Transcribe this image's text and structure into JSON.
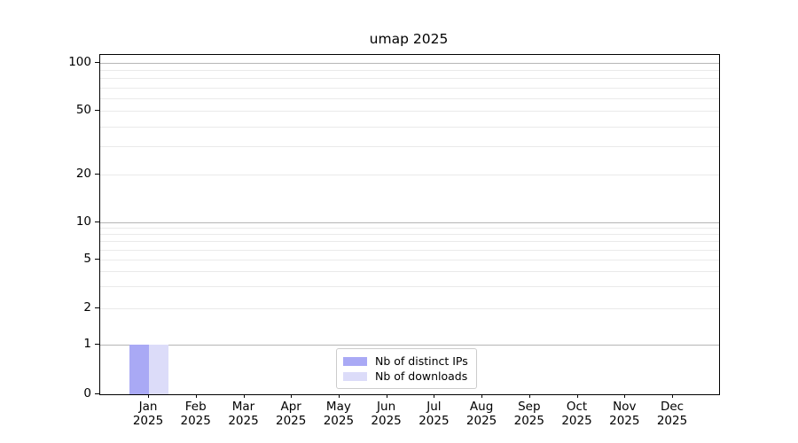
{
  "chart_data": {
    "type": "bar",
    "title": "umap 2025",
    "categories": [
      {
        "month": "Jan",
        "year": "2025"
      },
      {
        "month": "Feb",
        "year": "2025"
      },
      {
        "month": "Mar",
        "year": "2025"
      },
      {
        "month": "Apr",
        "year": "2025"
      },
      {
        "month": "May",
        "year": "2025"
      },
      {
        "month": "Jun",
        "year": "2025"
      },
      {
        "month": "Jul",
        "year": "2025"
      },
      {
        "month": "Aug",
        "year": "2025"
      },
      {
        "month": "Sep",
        "year": "2025"
      },
      {
        "month": "Oct",
        "year": "2025"
      },
      {
        "month": "Nov",
        "year": "2025"
      },
      {
        "month": "Dec",
        "year": "2025"
      }
    ],
    "series": [
      {
        "name": "Nb of distinct IPs",
        "color": "#a9a9f5",
        "values": [
          1,
          0,
          0,
          0,
          0,
          0,
          0,
          0,
          0,
          0,
          0,
          0
        ]
      },
      {
        "name": "Nb of downloads",
        "color": "#dcdcf9",
        "values": [
          1,
          0,
          0,
          0,
          0,
          0,
          0,
          0,
          0,
          0,
          0,
          0
        ]
      }
    ],
    "yaxis": {
      "scale": "symlog",
      "range": [
        0,
        100
      ],
      "tick_labels": [
        100,
        50,
        20,
        10,
        5,
        2,
        1,
        0
      ],
      "grid_major": [
        1,
        10,
        100
      ],
      "grid_minor": [
        2,
        3,
        4,
        5,
        6,
        7,
        8,
        9,
        20,
        30,
        40,
        50,
        60,
        70,
        80,
        90
      ]
    },
    "xlabel": "",
    "ylabel": "",
    "legend_position": "lower center",
    "colors": {
      "grid_major": "#b6b6b6",
      "grid_minor": "#eaeaea",
      "spine": "#000000",
      "background": "#ffffff"
    }
  }
}
